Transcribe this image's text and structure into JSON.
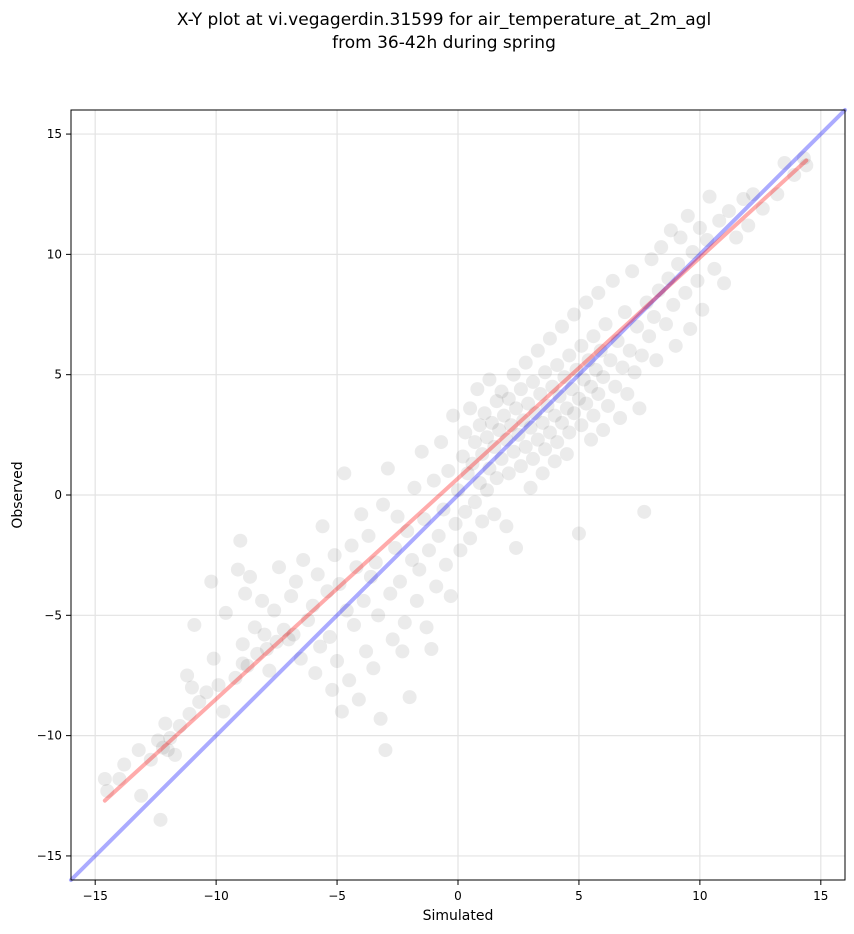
{
  "chart_data": {
    "type": "scatter",
    "title": "X-Y plot at vi.vegagerdin.31599 for air_temperature_at_2m_agl",
    "subtitle": "from 36-42h during spring",
    "xlabel": "Simulated",
    "ylabel": "Observed",
    "xlim": [
      -16,
      16
    ],
    "ylim": [
      -16,
      16
    ],
    "xticks": [
      -15,
      -10,
      -5,
      0,
      5,
      10,
      15
    ],
    "yticks": [
      -15,
      -10,
      -5,
      0,
      5,
      10,
      15
    ],
    "xtick_labels": [
      "−15",
      "−10",
      "−5",
      "0",
      "5",
      "10",
      "15"
    ],
    "ytick_labels": [
      "−15",
      "−10",
      "−5",
      "0",
      "5",
      "10",
      "15"
    ],
    "grid": true,
    "point_color": "#000000",
    "point_opacity": 0.08,
    "lines": [
      {
        "role": "identity",
        "color": "#0000ff",
        "x": [
          -16,
          16
        ],
        "y": [
          -16,
          16
        ]
      },
      {
        "role": "regression",
        "color": "#ff0000",
        "x": [
          -14.6,
          14.4
        ],
        "y": [
          -12.7,
          13.9
        ]
      }
    ],
    "series": [
      {
        "points": [
          [
            -14.6,
            -11.8
          ],
          [
            -14.5,
            -12.3
          ],
          [
            -14.0,
            -11.8
          ],
          [
            -13.8,
            -11.2
          ],
          [
            -13.2,
            -10.6
          ],
          [
            -13.1,
            -12.5
          ],
          [
            -12.7,
            -11.0
          ],
          [
            -12.4,
            -10.2
          ],
          [
            -12.3,
            -13.5
          ],
          [
            -12.2,
            -10.5
          ],
          [
            -12.1,
            -9.5
          ],
          [
            -12.0,
            -10.6
          ],
          [
            -11.9,
            -10.1
          ],
          [
            -11.7,
            -10.8
          ],
          [
            -11.5,
            -9.6
          ],
          [
            -11.2,
            -7.5
          ],
          [
            -11.1,
            -9.1
          ],
          [
            -11.0,
            -8.0
          ],
          [
            -10.9,
            -5.4
          ],
          [
            -10.7,
            -8.6
          ],
          [
            -10.4,
            -8.2
          ],
          [
            -10.2,
            -3.6
          ],
          [
            -10.1,
            -6.8
          ],
          [
            -9.9,
            -7.9
          ],
          [
            -9.7,
            -9.0
          ],
          [
            -9.6,
            -4.9
          ],
          [
            -9.2,
            -7.6
          ],
          [
            -9.1,
            -3.1
          ],
          [
            -9.0,
            -1.9
          ],
          [
            -8.9,
            -6.2
          ],
          [
            -8.8,
            -4.1
          ],
          [
            -8.7,
            -7.1
          ],
          [
            -8.6,
            -3.4
          ],
          [
            -8.4,
            -5.5
          ],
          [
            -8.3,
            -6.6
          ],
          [
            -8.1,
            -4.4
          ],
          [
            -8.0,
            -5.8
          ],
          [
            -7.8,
            -7.3
          ],
          [
            -7.6,
            -4.8
          ],
          [
            -7.5,
            -6.1
          ],
          [
            -7.4,
            -3.0
          ],
          [
            -7.2,
            -5.6
          ],
          [
            -7.0,
            -6.0
          ],
          [
            -6.9,
            -4.2
          ],
          [
            -6.7,
            -3.6
          ],
          [
            -6.5,
            -6.8
          ],
          [
            -6.4,
            -2.7
          ],
          [
            -6.2,
            -5.2
          ],
          [
            -6.0,
            -4.6
          ],
          [
            -5.9,
            -7.4
          ],
          [
            -5.8,
            -3.3
          ],
          [
            -5.7,
            -6.3
          ],
          [
            -5.6,
            -1.3
          ],
          [
            -5.4,
            -4.0
          ],
          [
            -5.3,
            -5.9
          ],
          [
            -5.2,
            -8.1
          ],
          [
            -5.1,
            -2.5
          ],
          [
            -5.0,
            -6.9
          ],
          [
            -4.9,
            -3.7
          ],
          [
            -4.8,
            -9.0
          ],
          [
            -4.7,
            0.9
          ],
          [
            -4.6,
            -4.8
          ],
          [
            -4.5,
            -7.7
          ],
          [
            -4.4,
            -2.1
          ],
          [
            -4.3,
            -5.4
          ],
          [
            -4.2,
            -3.0
          ],
          [
            -4.1,
            -8.5
          ],
          [
            -4.0,
            -0.8
          ],
          [
            -3.9,
            -4.4
          ],
          [
            -3.8,
            -6.5
          ],
          [
            -3.7,
            -1.7
          ],
          [
            -3.6,
            -3.4
          ],
          [
            -3.5,
            -7.2
          ],
          [
            -3.4,
            -2.8
          ],
          [
            -3.3,
            -5.0
          ],
          [
            -3.2,
            -9.3
          ],
          [
            -3.1,
            -0.4
          ],
          [
            -3.0,
            -10.6
          ],
          [
            -2.9,
            1.1
          ],
          [
            -2.8,
            -4.1
          ],
          [
            -2.7,
            -6.0
          ],
          [
            -2.6,
            -2.2
          ],
          [
            -2.5,
            -0.9
          ],
          [
            -2.4,
            -3.6
          ],
          [
            -2.3,
            -6.5
          ],
          [
            -2.2,
            -5.3
          ],
          [
            -2.1,
            -1.5
          ],
          [
            -2.0,
            -8.4
          ],
          [
            -1.9,
            -2.7
          ],
          [
            -1.8,
            0.3
          ],
          [
            -1.7,
            -4.4
          ],
          [
            -1.6,
            -3.1
          ],
          [
            -1.5,
            1.8
          ],
          [
            -1.4,
            -1.0
          ],
          [
            -1.3,
            -5.5
          ],
          [
            -1.2,
            -2.3
          ],
          [
            -1.1,
            -6.4
          ],
          [
            -1.0,
            0.6
          ],
          [
            -0.9,
            -3.8
          ],
          [
            -0.8,
            -1.7
          ],
          [
            -0.7,
            2.2
          ],
          [
            -0.6,
            -0.6
          ],
          [
            -0.5,
            -2.9
          ],
          [
            -0.4,
            1.0
          ],
          [
            -0.3,
            -4.2
          ],
          [
            -0.2,
            3.3
          ],
          [
            -0.1,
            -1.2
          ],
          [
            0.0,
            0.2
          ],
          [
            0.1,
            -2.3
          ],
          [
            0.2,
            1.6
          ],
          [
            0.3,
            -0.7
          ],
          [
            0.3,
            2.6
          ],
          [
            0.4,
            0.9
          ],
          [
            0.5,
            -1.8
          ],
          [
            0.5,
            3.6
          ],
          [
            0.6,
            1.3
          ],
          [
            0.7,
            -0.3
          ],
          [
            0.7,
            2.2
          ],
          [
            0.8,
            4.4
          ],
          [
            0.9,
            0.5
          ],
          [
            0.9,
            2.9
          ],
          [
            1.0,
            -1.1
          ],
          [
            1.0,
            1.7
          ],
          [
            1.1,
            3.4
          ],
          [
            1.2,
            0.2
          ],
          [
            1.2,
            2.4
          ],
          [
            1.3,
            4.8
          ],
          [
            1.3,
            1.1
          ],
          [
            1.4,
            3.0
          ],
          [
            1.5,
            -0.8
          ],
          [
            1.5,
            2.0
          ],
          [
            1.6,
            3.9
          ],
          [
            1.6,
            0.7
          ],
          [
            1.7,
            2.7
          ],
          [
            1.8,
            4.3
          ],
          [
            1.8,
            1.5
          ],
          [
            1.9,
            3.3
          ],
          [
            2.0,
            -1.3
          ],
          [
            2.0,
            2.3
          ],
          [
            2.1,
            4.0
          ],
          [
            2.1,
            0.9
          ],
          [
            2.2,
            2.9
          ],
          [
            2.3,
            5.0
          ],
          [
            2.3,
            1.8
          ],
          [
            2.4,
            3.6
          ],
          [
            2.4,
            -2.2
          ],
          [
            2.5,
            2.5
          ],
          [
            2.6,
            4.4
          ],
          [
            2.6,
            1.2
          ],
          [
            2.7,
            3.1
          ],
          [
            2.8,
            5.5
          ],
          [
            2.8,
            2.0
          ],
          [
            2.9,
            3.8
          ],
          [
            3.0,
            0.3
          ],
          [
            3.0,
            2.8
          ],
          [
            3.1,
            4.7
          ],
          [
            3.1,
            1.5
          ],
          [
            3.2,
            3.4
          ],
          [
            3.3,
            6.0
          ],
          [
            3.3,
            2.3
          ],
          [
            3.4,
            4.2
          ],
          [
            3.5,
            0.9
          ],
          [
            3.5,
            3.0
          ],
          [
            3.6,
            5.1
          ],
          [
            3.6,
            1.9
          ],
          [
            3.7,
            3.7
          ],
          [
            3.8,
            6.5
          ],
          [
            3.8,
            2.6
          ],
          [
            3.9,
            4.5
          ],
          [
            4.0,
            1.4
          ],
          [
            4.0,
            3.3
          ],
          [
            4.1,
            5.4
          ],
          [
            4.1,
            2.2
          ],
          [
            4.2,
            4.1
          ],
          [
            4.3,
            7.0
          ],
          [
            4.3,
            3.0
          ],
          [
            4.4,
            4.9
          ],
          [
            4.5,
            1.7
          ],
          [
            4.5,
            3.6
          ],
          [
            4.6,
            5.8
          ],
          [
            4.6,
            2.6
          ],
          [
            4.7,
            4.4
          ],
          [
            4.8,
            7.5
          ],
          [
            4.8,
            3.4
          ],
          [
            4.9,
            5.2
          ],
          [
            5.0,
            -1.6
          ],
          [
            5.0,
            4.0
          ],
          [
            5.1,
            6.2
          ],
          [
            5.1,
            2.9
          ],
          [
            5.2,
            4.8
          ],
          [
            5.3,
            8.0
          ],
          [
            5.3,
            3.8
          ],
          [
            5.4,
            5.6
          ],
          [
            5.5,
            2.3
          ],
          [
            5.5,
            4.5
          ],
          [
            5.6,
            6.6
          ],
          [
            5.6,
            3.3
          ],
          [
            5.7,
            5.2
          ],
          [
            5.8,
            8.4
          ],
          [
            5.8,
            4.2
          ],
          [
            5.9,
            6.0
          ],
          [
            6.0,
            2.7
          ],
          [
            6.0,
            4.9
          ],
          [
            6.1,
            7.1
          ],
          [
            6.2,
            3.7
          ],
          [
            6.3,
            5.6
          ],
          [
            6.4,
            8.9
          ],
          [
            6.5,
            4.5
          ],
          [
            6.6,
            6.4
          ],
          [
            6.7,
            3.2
          ],
          [
            6.8,
            5.3
          ],
          [
            6.9,
            7.6
          ],
          [
            7.0,
            4.2
          ],
          [
            7.1,
            6.0
          ],
          [
            7.2,
            9.3
          ],
          [
            7.3,
            5.1
          ],
          [
            7.4,
            7.0
          ],
          [
            7.5,
            3.6
          ],
          [
            7.6,
            5.8
          ],
          [
            7.7,
            -0.7
          ],
          [
            7.8,
            8.0
          ],
          [
            7.9,
            6.6
          ],
          [
            8.0,
            9.8
          ],
          [
            8.1,
            7.4
          ],
          [
            8.2,
            5.6
          ],
          [
            8.3,
            8.5
          ],
          [
            8.4,
            10.3
          ],
          [
            8.6,
            7.1
          ],
          [
            8.7,
            9.0
          ],
          [
            8.8,
            11.0
          ],
          [
            8.9,
            7.9
          ],
          [
            9.0,
            6.2
          ],
          [
            9.1,
            9.6
          ],
          [
            9.2,
            10.7
          ],
          [
            9.4,
            8.4
          ],
          [
            9.5,
            11.6
          ],
          [
            9.6,
            6.9
          ],
          [
            9.7,
            10.1
          ],
          [
            9.9,
            8.9
          ],
          [
            10.0,
            11.1
          ],
          [
            10.1,
            7.7
          ],
          [
            10.3,
            10.6
          ],
          [
            10.4,
            12.4
          ],
          [
            10.6,
            9.4
          ],
          [
            10.8,
            11.4
          ],
          [
            11.0,
            8.8
          ],
          [
            11.2,
            11.8
          ],
          [
            11.5,
            10.7
          ],
          [
            11.8,
            12.3
          ],
          [
            12.0,
            11.2
          ],
          [
            12.2,
            12.5
          ],
          [
            13.5,
            13.8
          ],
          [
            13.9,
            13.3
          ],
          [
            14.3,
            14.0
          ],
          [
            14.4,
            13.7
          ],
          [
            13.2,
            12.5
          ],
          [
            12.6,
            11.9
          ],
          [
            -6.8,
            -5.8
          ],
          [
            -7.9,
            -6.4
          ],
          [
            -8.9,
            -7.0
          ]
        ]
      }
    ]
  }
}
